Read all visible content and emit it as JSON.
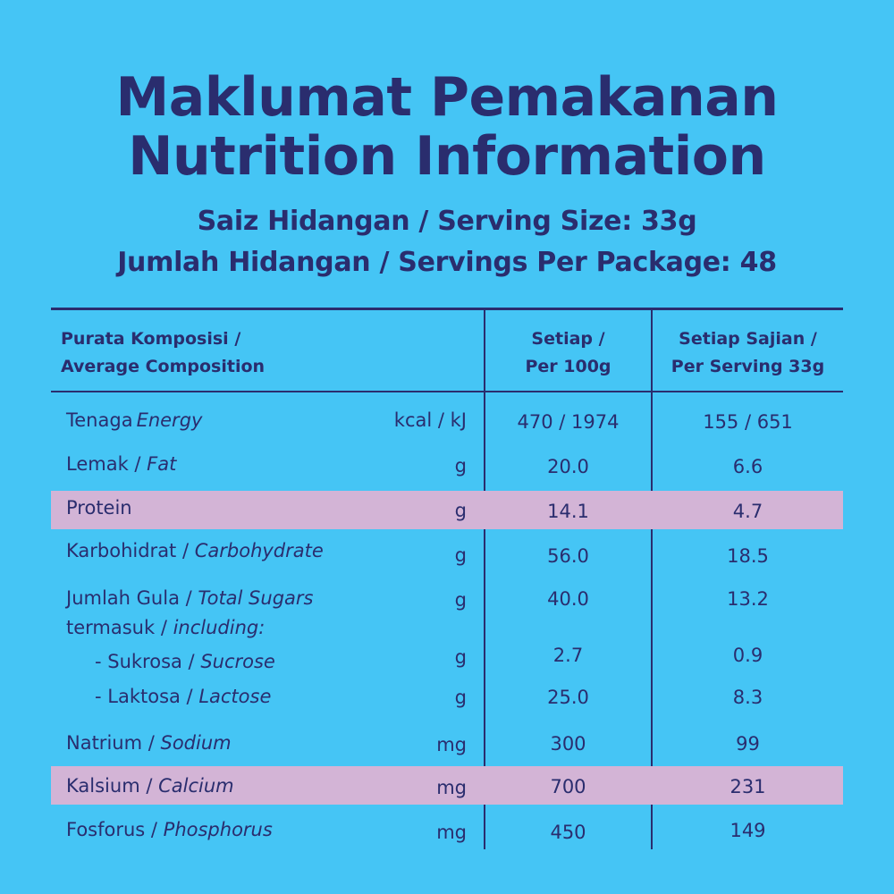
{
  "title": {
    "line1": "Maklumat Pemakanan",
    "line2": "Nutrition Information"
  },
  "serving": {
    "size": "Saiz Hidangan / Serving Size: 33g",
    "per_package": "Jumlah Hidangan / Servings Per Package: 48"
  },
  "table": {
    "headers": {
      "composition_line1": "Purata Komposisi /",
      "composition_line2": "Average Composition",
      "per100_line1": "Setiap /",
      "per100_line2": "Per 100g",
      "perserving_line1": "Setiap Sajian /",
      "perserving_line2": "Per Serving 33g"
    },
    "rows": [
      {
        "ms": "Tenaga",
        "en": "Energy",
        "unit": "kcal /  kJ",
        "per100": "470 / 1974",
        "perserving": "155 / 651"
      },
      {
        "ms": "Lemak / ",
        "en": "Fat",
        "unit": "g",
        "per100": "20.0",
        "perserving": "6.6"
      },
      {
        "ms": "Protein",
        "en": "",
        "unit": "g",
        "per100": "14.1",
        "perserving": "4.7"
      },
      {
        "ms": "Karbohidrat / ",
        "en": "Carbohydrate",
        "unit": "g",
        "per100": "56.0",
        "perserving": "18.5"
      },
      {
        "ms": "Jumlah Gula / ",
        "en": "Total Sugars",
        "unit": "g",
        "per100": "40.0",
        "perserving": "13.2"
      },
      {
        "ms": "termasuk / ",
        "en": "including:",
        "unit": "",
        "per100": "",
        "perserving": ""
      },
      {
        "ms": "- Sukrosa / ",
        "en": "Sucrose",
        "unit": "g",
        "per100": "2.7",
        "perserving": "0.9"
      },
      {
        "ms": "- Laktosa / ",
        "en": "Lactose",
        "unit": "g",
        "per100": "25.0",
        "perserving": "8.3"
      },
      {
        "ms": "Natrium / ",
        "en": "Sodium",
        "unit": "mg",
        "per100": "300",
        "perserving": "99"
      },
      {
        "ms": "Kalsium / ",
        "en": "Calcium",
        "unit": "mg",
        "per100": "700",
        "perserving": "231"
      },
      {
        "ms": "Fosforus / ",
        "en": "Phosphorus",
        "unit": "mg",
        "per100": "450",
        "perserving": "149"
      }
    ]
  },
  "colors": {
    "background": "#45c5f5",
    "text": "#2a2d6e",
    "highlight": "#d3b4d6"
  }
}
